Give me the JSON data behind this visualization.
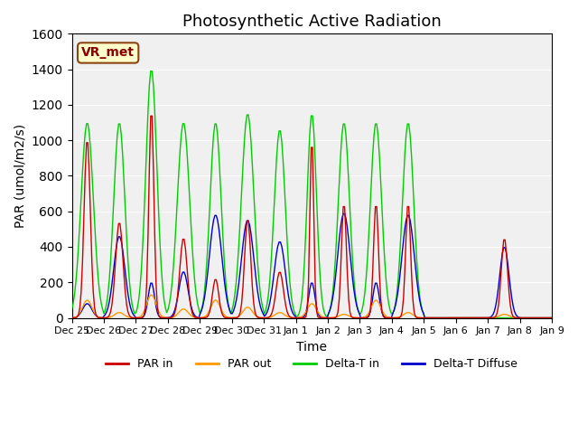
{
  "title": "Photosynthetic Active Radiation",
  "ylabel": "PAR (umol/m2/s)",
  "xlabel": "Time",
  "ylim": [
    0,
    1600
  ],
  "yticks": [
    0,
    200,
    400,
    600,
    800,
    1000,
    1200,
    1400,
    1600
  ],
  "annotation": "VR_met",
  "colors": {
    "PAR in": "#cc0000",
    "PAR out": "#ff9900",
    "Delta-T in": "#00cc00",
    "Delta-T Diffuse": "#0000cc"
  },
  "background_color": "#f0f0f0",
  "legend_labels": [
    "PAR in",
    "PAR out",
    "Delta-T in",
    "Delta-T Diffuse"
  ]
}
